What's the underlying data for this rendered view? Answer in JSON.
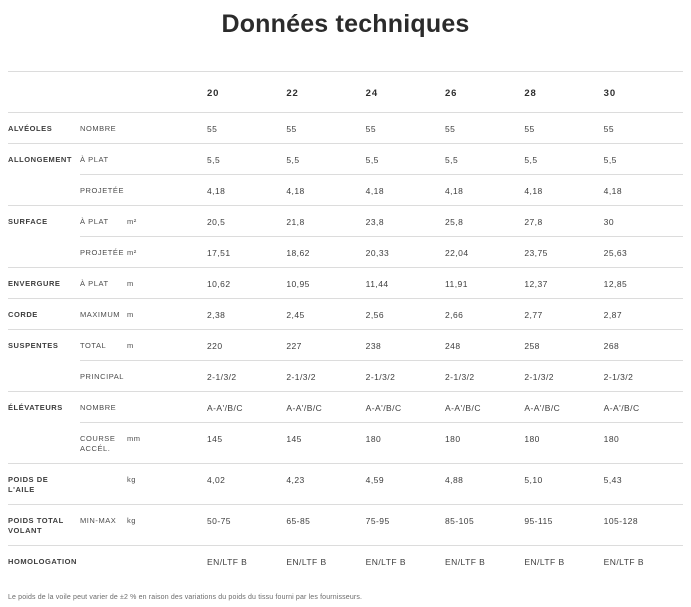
{
  "page": {
    "title": "Données techniques",
    "footnote": "Le poids de la voile peut varier de ±2 % en raison des variations du poids du tissu fourni par les fournisseurs."
  },
  "table": {
    "sizes": [
      "20",
      "22",
      "24",
      "26",
      "28",
      "30"
    ],
    "rows": [
      {
        "group": "ALVÉOLES",
        "sub": "NOMBRE",
        "unit": "",
        "divider": "full",
        "values": [
          "55",
          "55",
          "55",
          "55",
          "55",
          "55"
        ]
      },
      {
        "group": "ALLONGEMENT",
        "sub": "À PLAT",
        "unit": "",
        "divider": "full",
        "values": [
          "5,5",
          "5,5",
          "5,5",
          "5,5",
          "5,5",
          "5,5"
        ]
      },
      {
        "group": "",
        "sub": "PROJETÉE",
        "unit": "",
        "divider": "partial",
        "values": [
          "4,18",
          "4,18",
          "4,18",
          "4,18",
          "4,18",
          "4,18"
        ]
      },
      {
        "group": "SURFACE",
        "sub": "À PLAT",
        "unit": "m²",
        "divider": "full",
        "values": [
          "20,5",
          "21,8",
          "23,8",
          "25,8",
          "27,8",
          "30"
        ]
      },
      {
        "group": "",
        "sub": "PROJETÉE",
        "unit": "m²",
        "divider": "partial",
        "values": [
          "17,51",
          "18,62",
          "20,33",
          "22,04",
          "23,75",
          "25,63"
        ]
      },
      {
        "group": "ENVERGURE",
        "sub": "À PLAT",
        "unit": "m",
        "divider": "full",
        "values": [
          "10,62",
          "10,95",
          "11,44",
          "11,91",
          "12,37",
          "12,85"
        ]
      },
      {
        "group": "CORDE",
        "sub": "MAXIMUM",
        "unit": "m",
        "divider": "full",
        "values": [
          "2,38",
          "2,45",
          "2,56",
          "2,66",
          "2,77",
          "2,87"
        ]
      },
      {
        "group": "SUSPENTES",
        "sub": "TOTAL",
        "unit": "m",
        "divider": "full",
        "values": [
          "220",
          "227",
          "238",
          "248",
          "258",
          "268"
        ]
      },
      {
        "group": "",
        "sub": "PRINCIPAL",
        "unit": "",
        "divider": "partial",
        "values": [
          "2-1/3/2",
          "2-1/3/2",
          "2-1/3/2",
          "2-1/3/2",
          "2-1/3/2",
          "2-1/3/2"
        ]
      },
      {
        "group": "ÉLÉVATEURS",
        "sub": "NOMBRE",
        "unit": "",
        "divider": "full",
        "values": [
          "A-A'/B/C",
          "A-A'/B/C",
          "A-A'/B/C",
          "A-A'/B/C",
          "A-A'/B/C",
          "A-A'/B/C"
        ]
      },
      {
        "group": "",
        "sub": "COURSE ACCÉL.",
        "unit": "mm",
        "divider": "partial",
        "values": [
          "145",
          "145",
          "180",
          "180",
          "180",
          "180"
        ]
      },
      {
        "group": "POIDS DE L'AILE",
        "sub": "",
        "unit": "kg",
        "divider": "full",
        "values": [
          "4,02",
          "4,23",
          "4,59",
          "4,88",
          "5,10",
          "5,43"
        ]
      },
      {
        "group": "POIDS TOTAL VOLANT",
        "sub": "MIN-MAX",
        "unit": "kg",
        "divider": "full",
        "values": [
          "50-75",
          "65-85",
          "75-95",
          "85-105",
          "95-115",
          "105-128"
        ]
      },
      {
        "group": "HOMOLOGATION",
        "sub": "",
        "unit": "",
        "divider": "full",
        "values": [
          "EN/LTF B",
          "EN/LTF B",
          "EN/LTF B",
          "EN/LTF B",
          "EN/LTF B",
          "EN/LTF B"
        ]
      }
    ],
    "colors": {
      "divider_line": "#dcdcdc",
      "title_text": "#2b2b2b",
      "label_text": "#3d3d3d",
      "sublabel_text": "#4c4c4c",
      "footnote_text": "#6b6b6b"
    }
  }
}
